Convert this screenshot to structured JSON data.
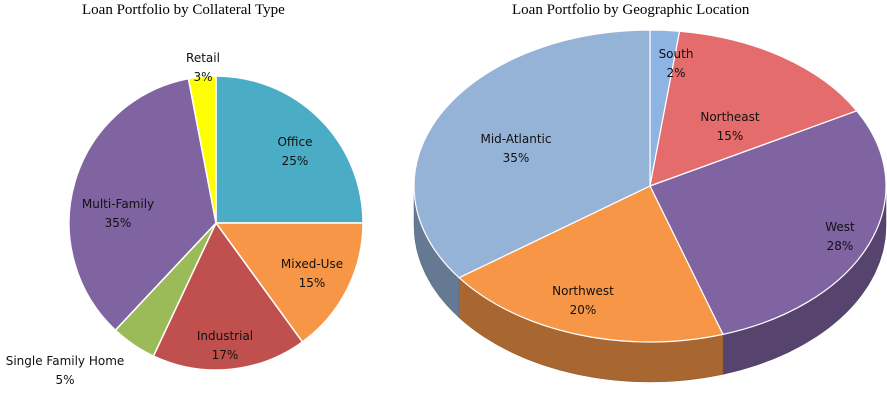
{
  "chart_data": [
    {
      "type": "pie",
      "title": "Loan Portfolio by Collateral Type",
      "slices": [
        {
          "label": "Office",
          "value": 25,
          "display": "25%",
          "color": "#4bacc6"
        },
        {
          "label": "Mixed-Use",
          "value": 15,
          "display": "15%",
          "color": "#f79646"
        },
        {
          "label": "Industrial",
          "value": 17,
          "display": "17%",
          "color": "#c0504d"
        },
        {
          "label": "Single Family Home",
          "value": 5,
          "display": "5%",
          "color": "#9bbb59"
        },
        {
          "label": "Multi-Family",
          "value": 35,
          "display": "35%",
          "color": "#8064a2"
        },
        {
          "label": "Retail",
          "value": 3,
          "display": "3%",
          "color": "#ffff00"
        }
      ]
    },
    {
      "type": "pie",
      "title": "Loan Portfolio by Geographic Location",
      "style": "3d",
      "slices": [
        {
          "label": "South",
          "value": 2,
          "display": "2%",
          "color": "#8eb4e3"
        },
        {
          "label": "Northeast",
          "value": 15,
          "display": "15%",
          "color": "#e46c6c"
        },
        {
          "label": "West",
          "value": 28,
          "display": "28%",
          "color": "#8064a2"
        },
        {
          "label": "Northwest",
          "value": 20,
          "display": "20%",
          "color": "#f79646"
        },
        {
          "label": "Mid-Atlantic",
          "value": 35,
          "display": "35%",
          "color": "#95b3d7"
        }
      ]
    }
  ]
}
